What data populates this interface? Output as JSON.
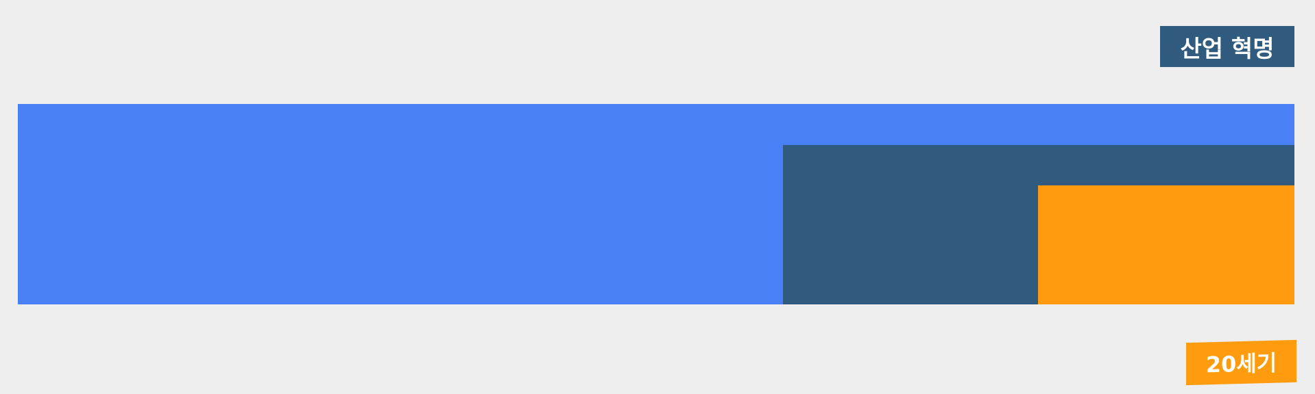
{
  "labels": {
    "top": {
      "text": "산업 혁명",
      "color": "#305a7e"
    },
    "bottom": {
      "text": "20세기",
      "color": "#ff9b0e"
    }
  },
  "blocks": {
    "main": {
      "color": "#4a80f6"
    },
    "middle": {
      "color": "#305a7e"
    },
    "inner": {
      "color": "#ff9b0e"
    }
  }
}
